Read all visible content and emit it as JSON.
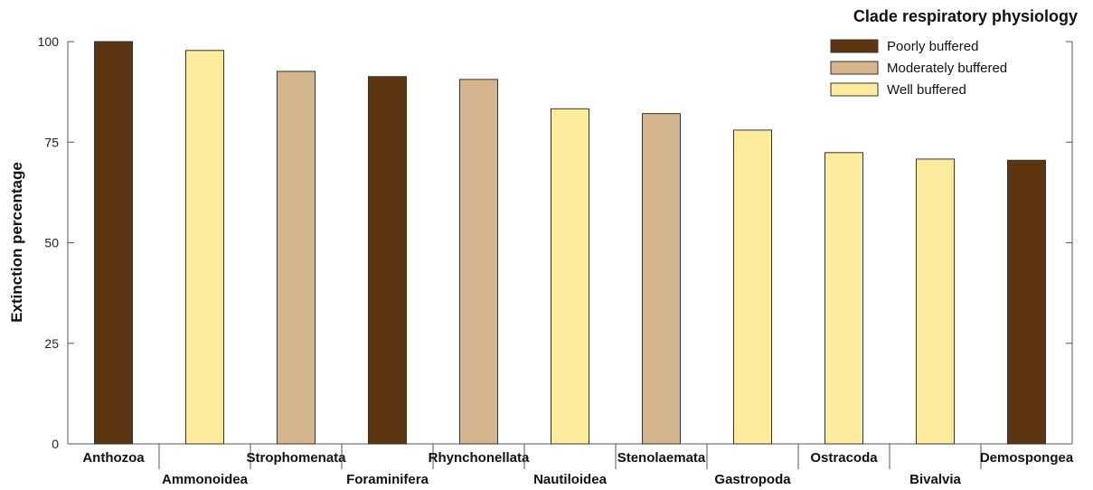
{
  "chart_data": {
    "type": "bar",
    "ylabel": "Extinction percentage",
    "ylim": [
      0,
      100
    ],
    "yticks": [
      0,
      25,
      50,
      75,
      100
    ],
    "grid": false,
    "legend": {
      "title": "Clade respiratory physiology",
      "position": "top-right",
      "entries": [
        {
          "key": "poor",
          "label": "Poorly buffered",
          "color": "#5e3511"
        },
        {
          "key": "moderate",
          "label": "Moderately buffered",
          "color": "#d4b58e"
        },
        {
          "key": "well",
          "label": "Well buffered",
          "color": "#fdec9e"
        }
      ]
    },
    "categories": [
      "Anthozoa",
      "Ammonoidea",
      "Strophomenata",
      "Foraminifera",
      "Rhynchonellata",
      "Nautiloidea",
      "Stenolaemata",
      "Gastropoda",
      "Ostracoda",
      "Bivalvia",
      "Demospongea"
    ],
    "values": [
      100,
      97.8,
      92.6,
      91.3,
      90.6,
      83.3,
      82.1,
      78.0,
      72.4,
      70.8,
      70.5
    ],
    "groups": [
      "poor",
      "well",
      "moderate",
      "poor",
      "moderate",
      "well",
      "moderate",
      "well",
      "well",
      "well",
      "poor"
    ]
  }
}
